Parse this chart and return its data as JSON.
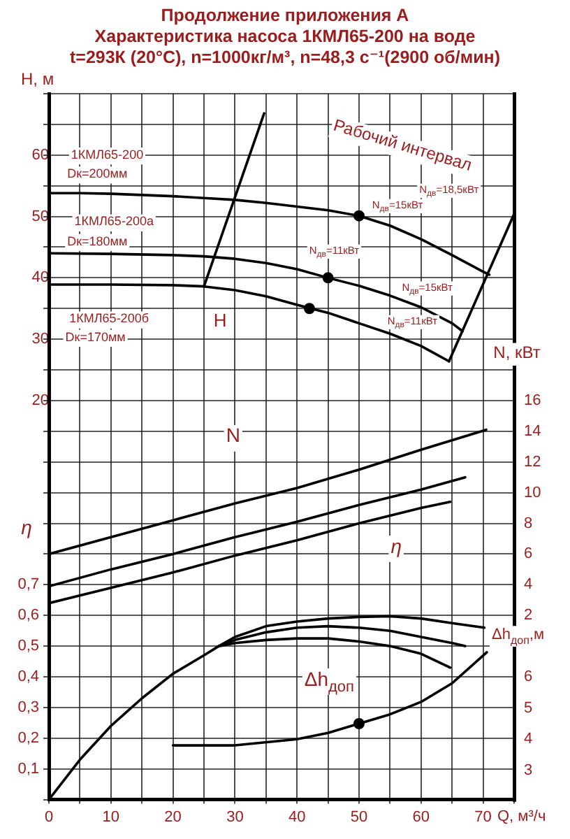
{
  "chart_data": [
    {
      "type": "line",
      "title": "Продолжение приложения А\nХарактеристика насоса 1КМЛ65-200 на воде\nt=293К (20°С), n=1000кг/м³, n=48,3 с⁻¹(2900 об/мин)",
      "xlabel": "Q, м³/ч",
      "ylabel": "H, м",
      "y2label": "N, кВт",
      "y3label": "η",
      "xlim": [
        0,
        75
      ],
      "xticks": [
        0,
        {
          "value": 5,
          "label": null
        },
        10,
        {
          "value": 15,
          "label": null
        },
        20,
        {
          "value": 25,
          "label": null
        },
        30,
        {
          "value": 35,
          "label": null
        },
        40,
        {
          "value": 45,
          "label": null
        },
        50,
        {
          "value": 55,
          "label": null
        },
        60,
        {
          "value": 65,
          "label": null
        },
        70,
        {
          "value": 75,
          "label": null
        }
      ],
      "ylim": [
        -45,
        70
      ],
      "yticks": [
        {
          "value": -45,
          "label": null
        },
        {
          "value": -40,
          "label": null
        },
        {
          "value": -35,
          "label": null
        },
        {
          "value": -30,
          "label": null
        },
        {
          "value": -25,
          "label": null
        },
        {
          "value": -20,
          "label": null
        },
        {
          "value": -15,
          "label": null
        },
        {
          "value": -10,
          "label": null
        },
        {
          "value": -5,
          "label": null
        },
        {
          "value": 0,
          "label": null
        },
        {
          "value": 5,
          "label": null
        },
        {
          "value": 10,
          "label": null
        },
        {
          "value": 15,
          "label": null
        },
        20,
        {
          "value": 25,
          "label": null
        },
        30,
        {
          "value": 35,
          "label": null
        },
        40,
        {
          "value": 45,
          "label": null
        },
        50,
        {
          "value": 55,
          "label": null
        },
        60,
        {
          "value": 65,
          "label": null
        },
        {
          "value": 70,
          "label": null
        }
      ],
      "y2lim": [
        -10,
        36
      ],
      "y2ticks": [
        2,
        4,
        6,
        8,
        10,
        12,
        14,
        16
      ],
      "y3lim": [
        0,
        2.3
      ],
      "y3ticks": [
        {
          "value": 0.1,
          "label": "0,1"
        },
        {
          "value": 0.2,
          "label": "0,2"
        },
        {
          "value": 0.3,
          "label": "0,3"
        },
        {
          "value": 0.4,
          "label": "0,4"
        },
        {
          "value": 0.5,
          "label": "0,5"
        },
        {
          "value": 0.6,
          "label": "0,6"
        },
        {
          "value": 0.7,
          "label": "0,7"
        }
      ],
      "grid": true,
      "series": [
        {
          "color": "#000000",
          "x": [
            0,
            5,
            10,
            15,
            20,
            25,
            30,
            35,
            40,
            45,
            50,
            55,
            60,
            65,
            70,
            71
          ],
          "values": [
            53.8,
            53.8,
            53.7,
            53.5,
            53.3,
            53.0,
            52.7,
            52.2,
            51.6,
            51.0,
            50.1,
            48.5,
            46.3,
            43.7,
            41.0,
            40.5
          ]
        },
        {
          "color": "#000000",
          "x": [
            0,
            10,
            20,
            25,
            30,
            35,
            40,
            45,
            50,
            55,
            60,
            65,
            66.7
          ],
          "values": [
            44.0,
            43.9,
            43.7,
            43.5,
            43.1,
            42.4,
            41.4,
            40.0,
            38.7,
            37.1,
            35.2,
            32.6,
            31.3
          ]
        },
        {
          "color": "#000000",
          "x": [
            0,
            10,
            20,
            25,
            30,
            35,
            40,
            45,
            50,
            55,
            60,
            64.5
          ],
          "values": [
            38.9,
            38.9,
            38.8,
            38.6,
            38.0,
            37.0,
            35.6,
            34.3,
            32.6,
            30.9,
            28.9,
            26.4
          ]
        },
        {
          "color": "#000000",
          "x": [
            25,
            34.7
          ],
          "values": [
            38.6,
            66.8
          ]
        },
        {
          "color": "#000000",
          "x": [
            64.5,
            75
          ],
          "values": [
            26.4,
            50.4
          ]
        },
        {
          "type": "scatter",
          "color": "#000000",
          "x": [
            50,
            45,
            42
          ],
          "values": [
            50.1,
            40.0,
            35.0
          ]
        },
        {
          "axis": "y2",
          "color": "#000000",
          "x": [
            0,
            10,
            20,
            30,
            40,
            50,
            60,
            70.5
          ],
          "values": [
            6.0,
            7.1,
            8.2,
            9.3,
            10.3,
            11.5,
            12.8,
            14.1
          ]
        },
        {
          "axis": "y2",
          "color": "#000000",
          "x": [
            0,
            10,
            20,
            30,
            40,
            50,
            60,
            67.1
          ],
          "values": [
            3.9,
            5.0,
            6.0,
            7.1,
            8.1,
            9.2,
            10.2,
            11.0
          ]
        },
        {
          "axis": "y2",
          "color": "#000000",
          "x": [
            0,
            10,
            20,
            30,
            40,
            50,
            60,
            64.7
          ],
          "values": [
            2.8,
            3.8,
            4.8,
            5.9,
            6.9,
            8.0,
            9.0,
            9.4
          ]
        },
        {
          "axis": "y3",
          "color": "#000000",
          "x": [
            0,
            5,
            10,
            15,
            20,
            25,
            27.4,
            30,
            35,
            40,
            45,
            50,
            55,
            60,
            65,
            70.2
          ],
          "values": [
            0,
            0.13,
            0.24,
            0.33,
            0.41,
            0.47,
            0.5,
            0.53,
            0.565,
            0.58,
            0.59,
            0.595,
            0.597,
            0.59,
            0.575,
            0.56
          ]
        },
        {
          "axis": "y3",
          "color": "#000000",
          "x": [
            27.4,
            30,
            35,
            40,
            45,
            50,
            55,
            60,
            65,
            67.1
          ],
          "values": [
            0.5,
            0.52,
            0.545,
            0.56,
            0.565,
            0.56,
            0.55,
            0.53,
            0.51,
            0.5
          ]
        },
        {
          "axis": "y3",
          "color": "#000000",
          "x": [
            27.4,
            30,
            35,
            40,
            45,
            50,
            55,
            60,
            64.7
          ],
          "values": [
            0.5,
            0.51,
            0.52,
            0.525,
            0.525,
            0.515,
            0.5,
            0.475,
            0.43
          ]
        }
      ],
      "annotations": [
        "1КМЛ65-200",
        "Dк=200мм",
        "1КМЛ65-200а",
        "Dк=180мм",
        "1КМЛ65-200б",
        "Dк=170мм",
        "Рабочий интервал",
        "N$_{дв}$=18,5кВт",
        "N$_{дв}$=15кВт",
        "N$_{дв}$=11кВт",
        "N$_{дв}$=15кВт",
        "N$_{дв}$=11кВт",
        "H",
        "N",
        "η"
      ]
    },
    {
      "type": "line",
      "ylabel": "Δh$_{доп}$,м",
      "xlim": [
        0,
        75
      ],
      "ylim": [
        2,
        7
      ],
      "yticks": [
        3,
        4,
        5,
        6
      ],
      "tick_labels": "y",
      "series": [
        {
          "color": "#000000",
          "x": [
            20,
            30,
            40,
            45,
            50,
            55,
            60,
            65,
            70.6
          ],
          "values": [
            3.8,
            3.8,
            4.0,
            4.2,
            4.5,
            4.8,
            5.2,
            5.8,
            6.8
          ]
        },
        {
          "type": "scatter",
          "color": "#000000",
          "x": [
            50
          ],
          "values": [
            4.5
          ]
        }
      ],
      "annotations": [
        "Δh$_{доп}$"
      ]
    }
  ]
}
